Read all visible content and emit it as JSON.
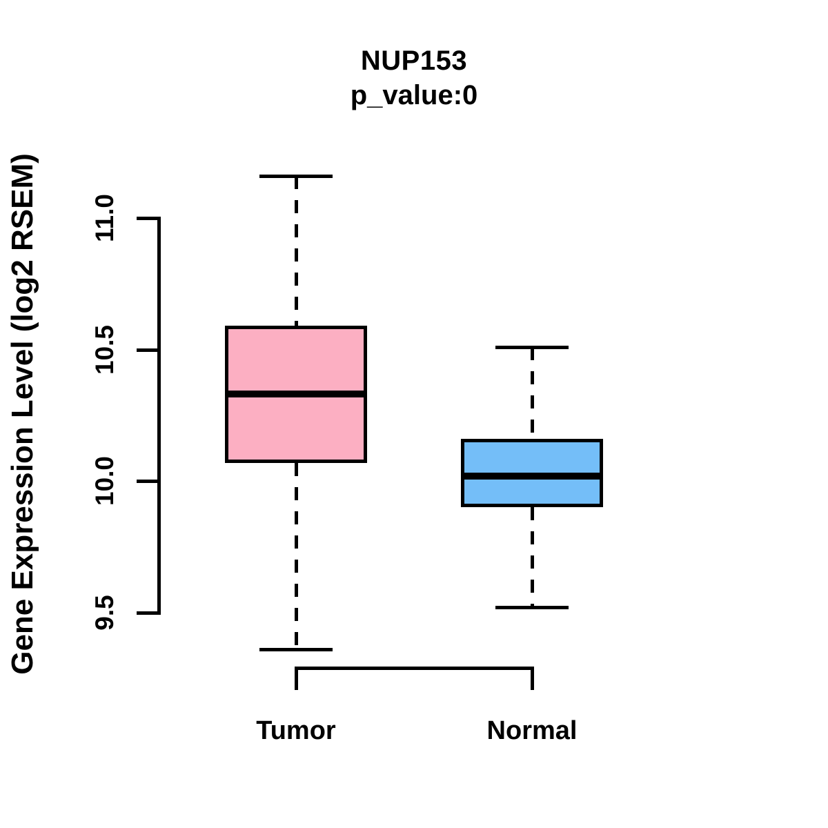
{
  "figure": {
    "title": "NUP153",
    "subtitle": "p_value:0",
    "ylabel": "Gene Expression Level (log2 RSEM)"
  },
  "chart_data": {
    "type": "boxplot",
    "title": "NUP153",
    "subtitle": "p_value:0",
    "ylabel": "Gene Expression Level (log2 RSEM)",
    "xlabel": "",
    "categories": [
      "Tumor",
      "Normal"
    ],
    "series": [
      {
        "name": "Tumor",
        "color": "#FCAFC2",
        "whisker_low": 9.36,
        "q1": 10.07,
        "median": 10.33,
        "q3": 10.59,
        "whisker_high": 11.16
      },
      {
        "name": "Normal",
        "color": "#74BEF8",
        "whisker_low": 9.52,
        "q1": 9.9,
        "median": 10.02,
        "q3": 10.16,
        "whisker_high": 10.51
      }
    ],
    "ytick_labels": [
      "9.5",
      "10.0",
      "10.5",
      "11.0"
    ],
    "ytick_values": [
      9.5,
      10.0,
      10.5,
      11.0
    ],
    "axis_range": [
      9.5,
      11.0
    ],
    "grid": false,
    "legend": "none",
    "outline_color": "#000000",
    "background": "#FFFFFF"
  }
}
